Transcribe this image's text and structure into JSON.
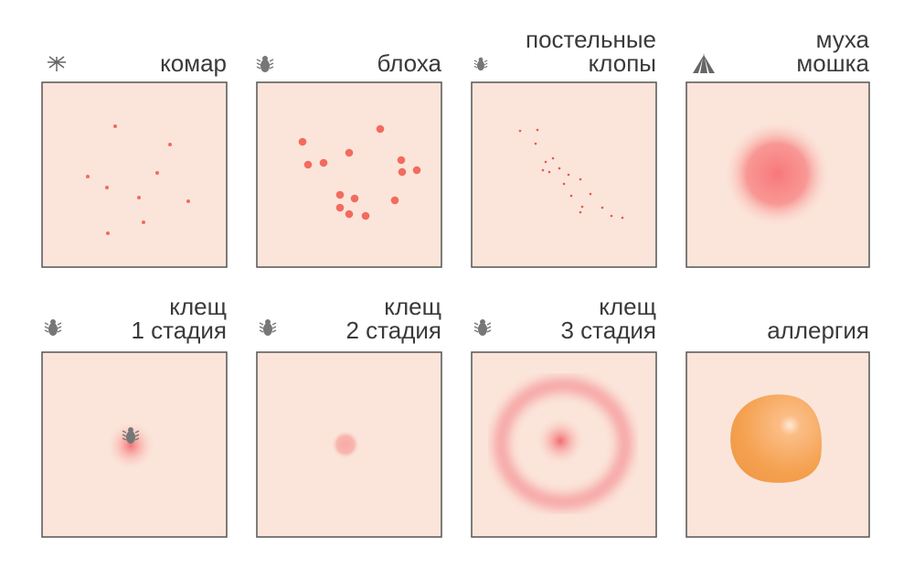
{
  "panels": [
    {
      "label": [
        "комар"
      ]
    },
    {
      "label": [
        "блоха"
      ]
    },
    {
      "label": [
        "постельные",
        "клопы"
      ]
    },
    {
      "label": [
        "муха",
        "мошка"
      ]
    },
    {
      "label": [
        "клещ",
        "1 стадия"
      ]
    },
    {
      "label": [
        "клещ",
        "2 стадия"
      ]
    },
    {
      "label": [
        "клещ",
        "3 стадия"
      ]
    },
    {
      "label": [
        "аллергия"
      ]
    }
  ]
}
